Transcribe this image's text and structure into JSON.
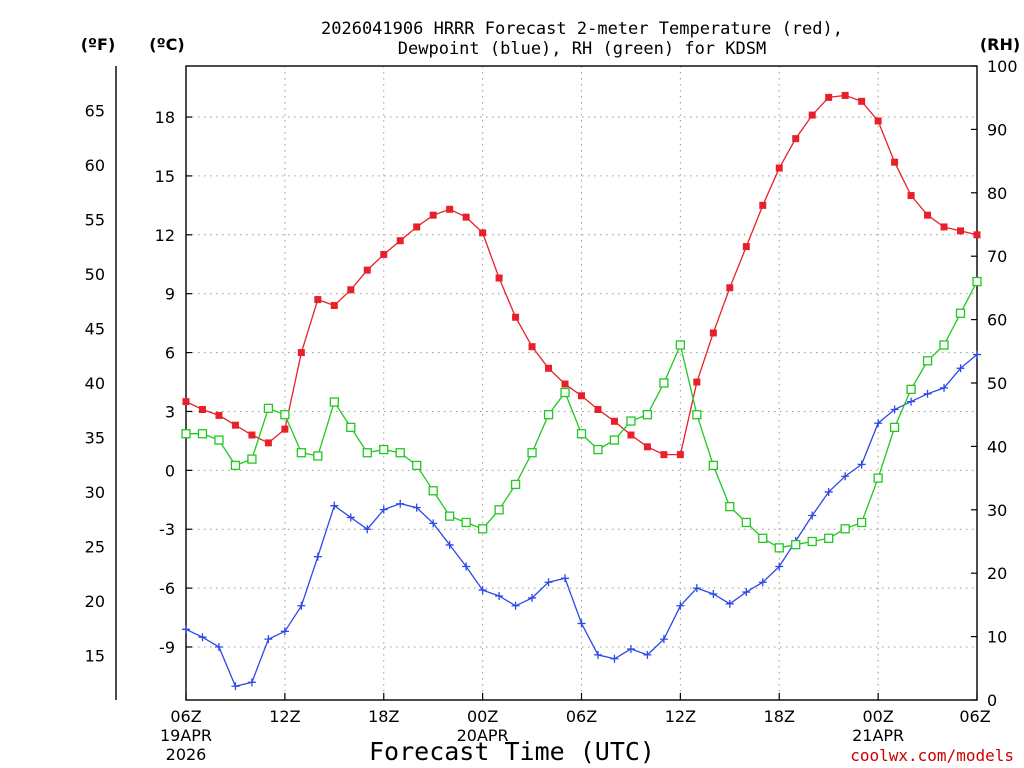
{
  "chart_data": {
    "type": "line",
    "title_line1": "2026041906 HRRR Forecast 2-meter Temperature (red),",
    "title_line2": "Dewpoint (blue), RH (green) for KDSM",
    "xlabel": "Forecast Time (UTC)",
    "credit": "coolwx.com/models",
    "units": {
      "fahrenheit": "(ºF)",
      "celsius": "(ºC)",
      "rh": "(RH)"
    },
    "x_hours": [
      0,
      1,
      2,
      3,
      4,
      5,
      6,
      7,
      8,
      9,
      10,
      11,
      12,
      13,
      14,
      15,
      16,
      17,
      18,
      19,
      20,
      21,
      22,
      23,
      24,
      25,
      26,
      27,
      28,
      29,
      30,
      31,
      32,
      33,
      34,
      35,
      36,
      37,
      38,
      39,
      40,
      41,
      42,
      43,
      44,
      45,
      46,
      47,
      48
    ],
    "x_range_hours": [
      0,
      48
    ],
    "x_ticks": [
      {
        "hour": 0,
        "label": "06Z",
        "sub1": "19APR",
        "sub2": "2026"
      },
      {
        "hour": 6,
        "label": "12Z",
        "sub1": "",
        "sub2": ""
      },
      {
        "hour": 12,
        "label": "18Z",
        "sub1": "",
        "sub2": ""
      },
      {
        "hour": 18,
        "label": "00Z",
        "sub1": "20APR",
        "sub2": ""
      },
      {
        "hour": 24,
        "label": "06Z",
        "sub1": "",
        "sub2": ""
      },
      {
        "hour": 30,
        "label": "12Z",
        "sub1": "",
        "sub2": ""
      },
      {
        "hour": 36,
        "label": "18Z",
        "sub1": "",
        "sub2": ""
      },
      {
        "hour": 42,
        "label": "00Z",
        "sub1": "21APR",
        "sub2": ""
      },
      {
        "hour": 48,
        "label": "06Z",
        "sub1": "",
        "sub2": ""
      }
    ],
    "y_left_celsius": {
      "range": [
        -11.7,
        20.6
      ],
      "ticks": [
        "-9",
        "-6",
        "-3",
        "0",
        "3",
        "6",
        "9",
        "12",
        "15",
        "18"
      ]
    },
    "y_left_fahrenheit": {
      "ticks": [
        "15",
        "20",
        "25",
        "30",
        "35",
        "40",
        "45",
        "50",
        "55",
        "60",
        "65"
      ]
    },
    "y_right_rh": {
      "range": [
        0,
        100
      ],
      "ticks": [
        "0",
        "10",
        "20",
        "30",
        "40",
        "50",
        "60",
        "70",
        "80",
        "90",
        "100"
      ]
    },
    "grid": "dotted",
    "series": [
      {
        "name": "2-meter Temperature",
        "axis": "celsius",
        "color": "#e8202a",
        "marker": "filled-square",
        "values": [
          3.5,
          3.1,
          2.8,
          2.3,
          1.8,
          1.4,
          2.1,
          6.0,
          8.7,
          8.4,
          9.2,
          10.2,
          11.0,
          11.7,
          12.4,
          13.0,
          13.3,
          12.9,
          12.1,
          9.8,
          7.8,
          6.3,
          5.2,
          4.4,
          3.8,
          3.1,
          2.5,
          1.8,
          1.2,
          0.8,
          0.8,
          4.5,
          7.0,
          9.3,
          11.4,
          13.5,
          15.4,
          16.9,
          18.1,
          19.0,
          19.1,
          18.8,
          17.8,
          15.7,
          14.0,
          13.0,
          12.4,
          12.2,
          12.0
        ]
      },
      {
        "name": "Dewpoint",
        "axis": "celsius",
        "color": "#2c48e8",
        "marker": "plus",
        "values": [
          -8.1,
          -8.5,
          -9.0,
          -11.0,
          -10.8,
          -8.6,
          -8.2,
          -6.9,
          -4.4,
          -1.8,
          -2.4,
          -3.0,
          -2.0,
          -1.7,
          -1.9,
          -2.7,
          -3.8,
          -4.9,
          -6.1,
          -6.4,
          -6.9,
          -6.5,
          -5.7,
          -5.5,
          -7.8,
          -9.4,
          -9.6,
          -9.1,
          -9.4,
          -8.6,
          -6.9,
          -6.0,
          -6.3,
          -6.8,
          -6.2,
          -5.7,
          -4.9,
          -3.6,
          -2.3,
          -1.1,
          -0.3,
          0.3,
          2.4,
          3.1,
          3.5,
          3.9,
          4.2,
          5.2,
          5.9
        ]
      },
      {
        "name": "RH",
        "axis": "rh",
        "color": "#20c820",
        "marker": "open-square",
        "values": [
          42,
          42,
          41,
          37,
          38,
          46,
          45,
          39,
          38.5,
          47,
          43,
          39,
          39.5,
          39,
          37,
          33,
          29,
          28,
          27,
          30,
          34,
          39,
          45,
          48.5,
          42,
          39.5,
          41,
          44,
          45,
          50,
          56,
          45,
          37,
          30.5,
          28,
          25.5,
          24,
          24.5,
          25,
          25.5,
          27,
          28,
          35,
          43,
          49,
          53.5,
          56,
          61,
          66
        ]
      }
    ]
  }
}
